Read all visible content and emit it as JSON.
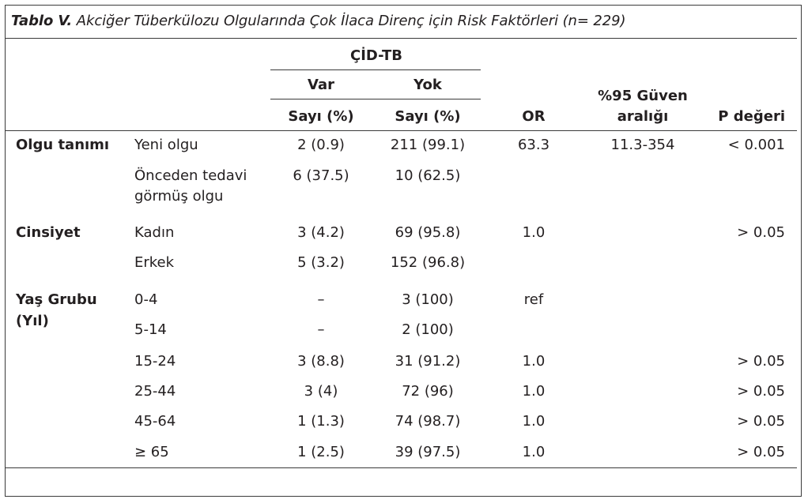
{
  "title": {
    "label": "Tablo V.",
    "text": "Akciğer Tüberkülozu Olgularında Çok İlaca Direnç için Risk Faktörleri (n= 229)"
  },
  "header": {
    "group": "ÇİD-TB",
    "var": "Var",
    "yok": "Yok",
    "sayi_var": "Sayı (%)",
    "sayi_yok": "Sayı (%)",
    "or": "OR",
    "ci_line1": "%95 Güven",
    "ci_line2": "aralığı",
    "p": "P değeri"
  },
  "groups": [
    {
      "label": "Olgu tanımı"
    },
    {
      "label": "Cinsiyet"
    },
    {
      "label_line1": "Yaş Grubu",
      "label_line2": "(Yıl)"
    }
  ],
  "rows": [
    {
      "sub": "Yeni olgu",
      "var": "2 (0.9)",
      "yok": "211 (99.1)",
      "or": "63.3",
      "ci": "11.3-354",
      "p": "< 0.001"
    },
    {
      "sub_line1": "Önceden tedavi",
      "sub_line2": "görmüş olgu",
      "var": "6 (37.5)",
      "yok": "10 (62.5)",
      "or": "",
      "ci": "",
      "p": ""
    },
    {
      "sub": "Kadın",
      "var": "3 (4.2)",
      "yok": "69 (95.8)",
      "or": "1.0",
      "ci": "",
      "p": "> 0.05"
    },
    {
      "sub": "Erkek",
      "var": "5 (3.2)",
      "yok": "152 (96.8)",
      "or": "",
      "ci": "",
      "p": ""
    },
    {
      "sub": "0-4",
      "var": "–",
      "yok": "3 (100)",
      "or": "ref",
      "ci": "",
      "p": ""
    },
    {
      "sub": "5-14",
      "var": "–",
      "yok": "2 (100)",
      "or": "",
      "ci": "",
      "p": ""
    },
    {
      "sub": "15-24",
      "var": "3 (8.8)",
      "yok": "31 (91.2)",
      "or": "1.0",
      "ci": "",
      "p": "> 0.05"
    },
    {
      "sub": "25-44",
      "var": "3 (4)",
      "yok": "72 (96)",
      "or": "1.0",
      "ci": "",
      "p": "> 0.05"
    },
    {
      "sub": "45-64",
      "var": "1 (1.3)",
      "yok": "74 (98.7)",
      "or": "1.0",
      "ci": "",
      "p": "> 0.05"
    },
    {
      "sub": "≥ 65",
      "var": "1 (2.5)",
      "yok": "39 (97.5)",
      "or": "1.0",
      "ci": "",
      "p": "> 0.05"
    }
  ]
}
